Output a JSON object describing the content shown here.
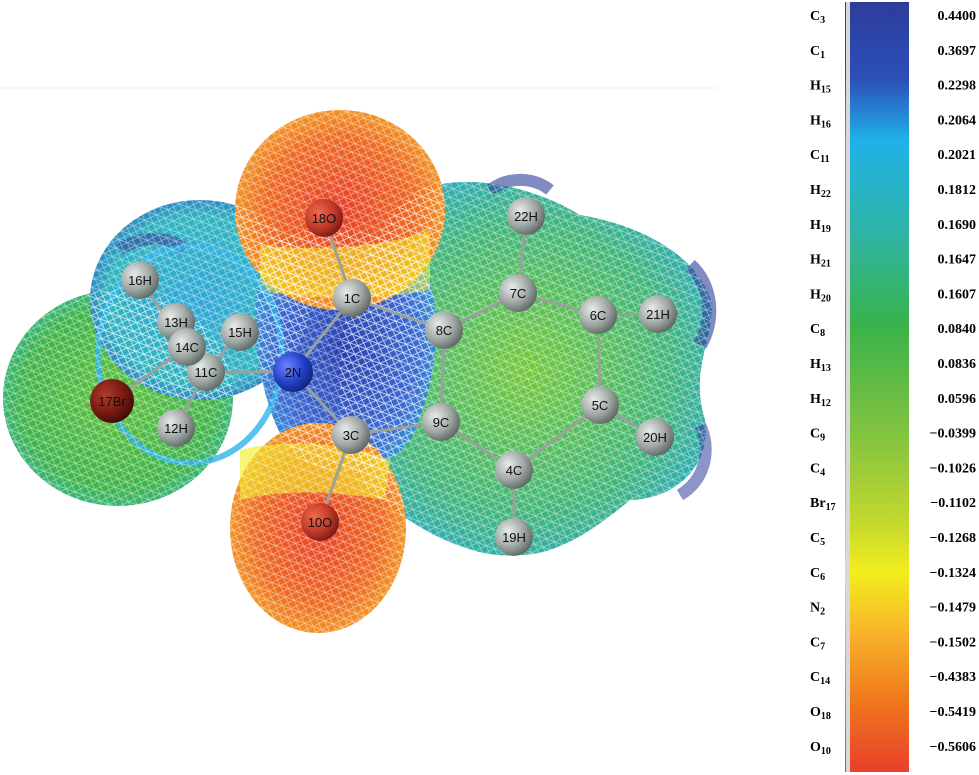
{
  "colors": {
    "scale": [
      "#e8402a",
      "#f07c1c",
      "#f8b32a",
      "#f2ee1e",
      "#a6d334",
      "#39b24a",
      "#2fb4a6",
      "#1fb2e8",
      "#2b6fd0",
      "#2e3c9a"
    ],
    "atom_gray": "#a7adaa",
    "atom_red": "#c0392b",
    "atom_blue": "#2340c8",
    "atom_darkred": "#7a1a12"
  },
  "molecule": {
    "atoms": [
      {
        "id": "a1",
        "label": "1C",
        "color": "atom_gray"
      },
      {
        "id": "a2",
        "label": "2N",
        "color": "atom_blue"
      },
      {
        "id": "a3",
        "label": "3C",
        "color": "atom_gray"
      },
      {
        "id": "a4",
        "label": "4C",
        "color": "atom_gray"
      },
      {
        "id": "a5",
        "label": "5C",
        "color": "atom_gray"
      },
      {
        "id": "a6",
        "label": "6C",
        "color": "atom_gray"
      },
      {
        "id": "a7",
        "label": "7C",
        "color": "atom_gray"
      },
      {
        "id": "a8",
        "label": "8C",
        "color": "atom_gray"
      },
      {
        "id": "a9",
        "label": "9C",
        "color": "atom_gray"
      },
      {
        "id": "a10",
        "label": "10O",
        "color": "atom_red"
      },
      {
        "id": "a11",
        "label": "11C",
        "color": "atom_gray"
      },
      {
        "id": "a12",
        "label": "12H",
        "color": "atom_gray"
      },
      {
        "id": "a13",
        "label": "13H",
        "color": "atom_gray"
      },
      {
        "id": "a14",
        "label": "14C",
        "color": "atom_gray"
      },
      {
        "id": "a15",
        "label": "15H",
        "color": "atom_gray"
      },
      {
        "id": "a16",
        "label": "16H",
        "color": "atom_gray"
      },
      {
        "id": "a17",
        "label": "17Br",
        "color": "atom_darkred"
      },
      {
        "id": "a18",
        "label": "18O",
        "color": "atom_red"
      },
      {
        "id": "a19",
        "label": "19H",
        "color": "atom_gray"
      },
      {
        "id": "a20",
        "label": "20H",
        "color": "atom_gray"
      },
      {
        "id": "a21",
        "label": "21H",
        "color": "atom_gray"
      },
      {
        "id": "a22",
        "label": "22H",
        "color": "atom_gray"
      }
    ],
    "bonds": [
      [
        "a1",
        "a18"
      ],
      [
        "a1",
        "a2"
      ],
      [
        "a1",
        "a8"
      ],
      [
        "a2",
        "a3"
      ],
      [
        "a2",
        "a11"
      ],
      [
        "a3",
        "a10"
      ],
      [
        "a3",
        "a9"
      ],
      [
        "a8",
        "a9"
      ],
      [
        "a8",
        "a7"
      ],
      [
        "a7",
        "a22"
      ],
      [
        "a7",
        "a6"
      ],
      [
        "a6",
        "a21"
      ],
      [
        "a6",
        "a5"
      ],
      [
        "a5",
        "a20"
      ],
      [
        "a5",
        "a4"
      ],
      [
        "a4",
        "a19"
      ],
      [
        "a4",
        "a9"
      ],
      [
        "a11",
        "a14"
      ],
      [
        "a11",
        "a15"
      ],
      [
        "a14",
        "a13"
      ],
      [
        "a14",
        "a16"
      ],
      [
        "a14",
        "a17"
      ],
      [
        "a11",
        "a12"
      ]
    ]
  },
  "legend": {
    "rows": [
      {
        "atom": "C",
        "sub": "3",
        "value": "0.4400"
      },
      {
        "atom": "C",
        "sub": "1",
        "value": "0.3697"
      },
      {
        "atom": "H",
        "sub": "15",
        "value": "0.2298"
      },
      {
        "atom": "H",
        "sub": "16",
        "value": "0.2064"
      },
      {
        "atom": "C",
        "sub": "11",
        "value": "0.2021"
      },
      {
        "atom": "H",
        "sub": "22",
        "value": "0.1812"
      },
      {
        "atom": "H",
        "sub": "19",
        "value": "0.1690"
      },
      {
        "atom": "H",
        "sub": "21",
        "value": "0.1647"
      },
      {
        "atom": "H",
        "sub": "20",
        "value": "0.1607"
      },
      {
        "atom": "C",
        "sub": "8",
        "value": "0.0840"
      },
      {
        "atom": "H",
        "sub": "13",
        "value": "0.0836"
      },
      {
        "atom": "H",
        "sub": "12",
        "value": "0.0596"
      },
      {
        "atom": "C",
        "sub": "9",
        "value": "−0.0399"
      },
      {
        "atom": "C",
        "sub": "4",
        "value": "−0.1026"
      },
      {
        "atom": "Br",
        "sub": "17",
        "value": "−0.1102"
      },
      {
        "atom": "C",
        "sub": "5",
        "value": "−0.1268"
      },
      {
        "atom": "C",
        "sub": "6",
        "value": "−0.1324"
      },
      {
        "atom": "N",
        "sub": "2",
        "value": "−0.1479"
      },
      {
        "atom": "C",
        "sub": "7",
        "value": "−0.1502"
      },
      {
        "atom": "C",
        "sub": "14",
        "value": "−0.4383"
      },
      {
        "atom": "O",
        "sub": "18",
        "value": "−0.5419"
      },
      {
        "atom": "O",
        "sub": "10",
        "value": "−0.5606"
      }
    ]
  }
}
